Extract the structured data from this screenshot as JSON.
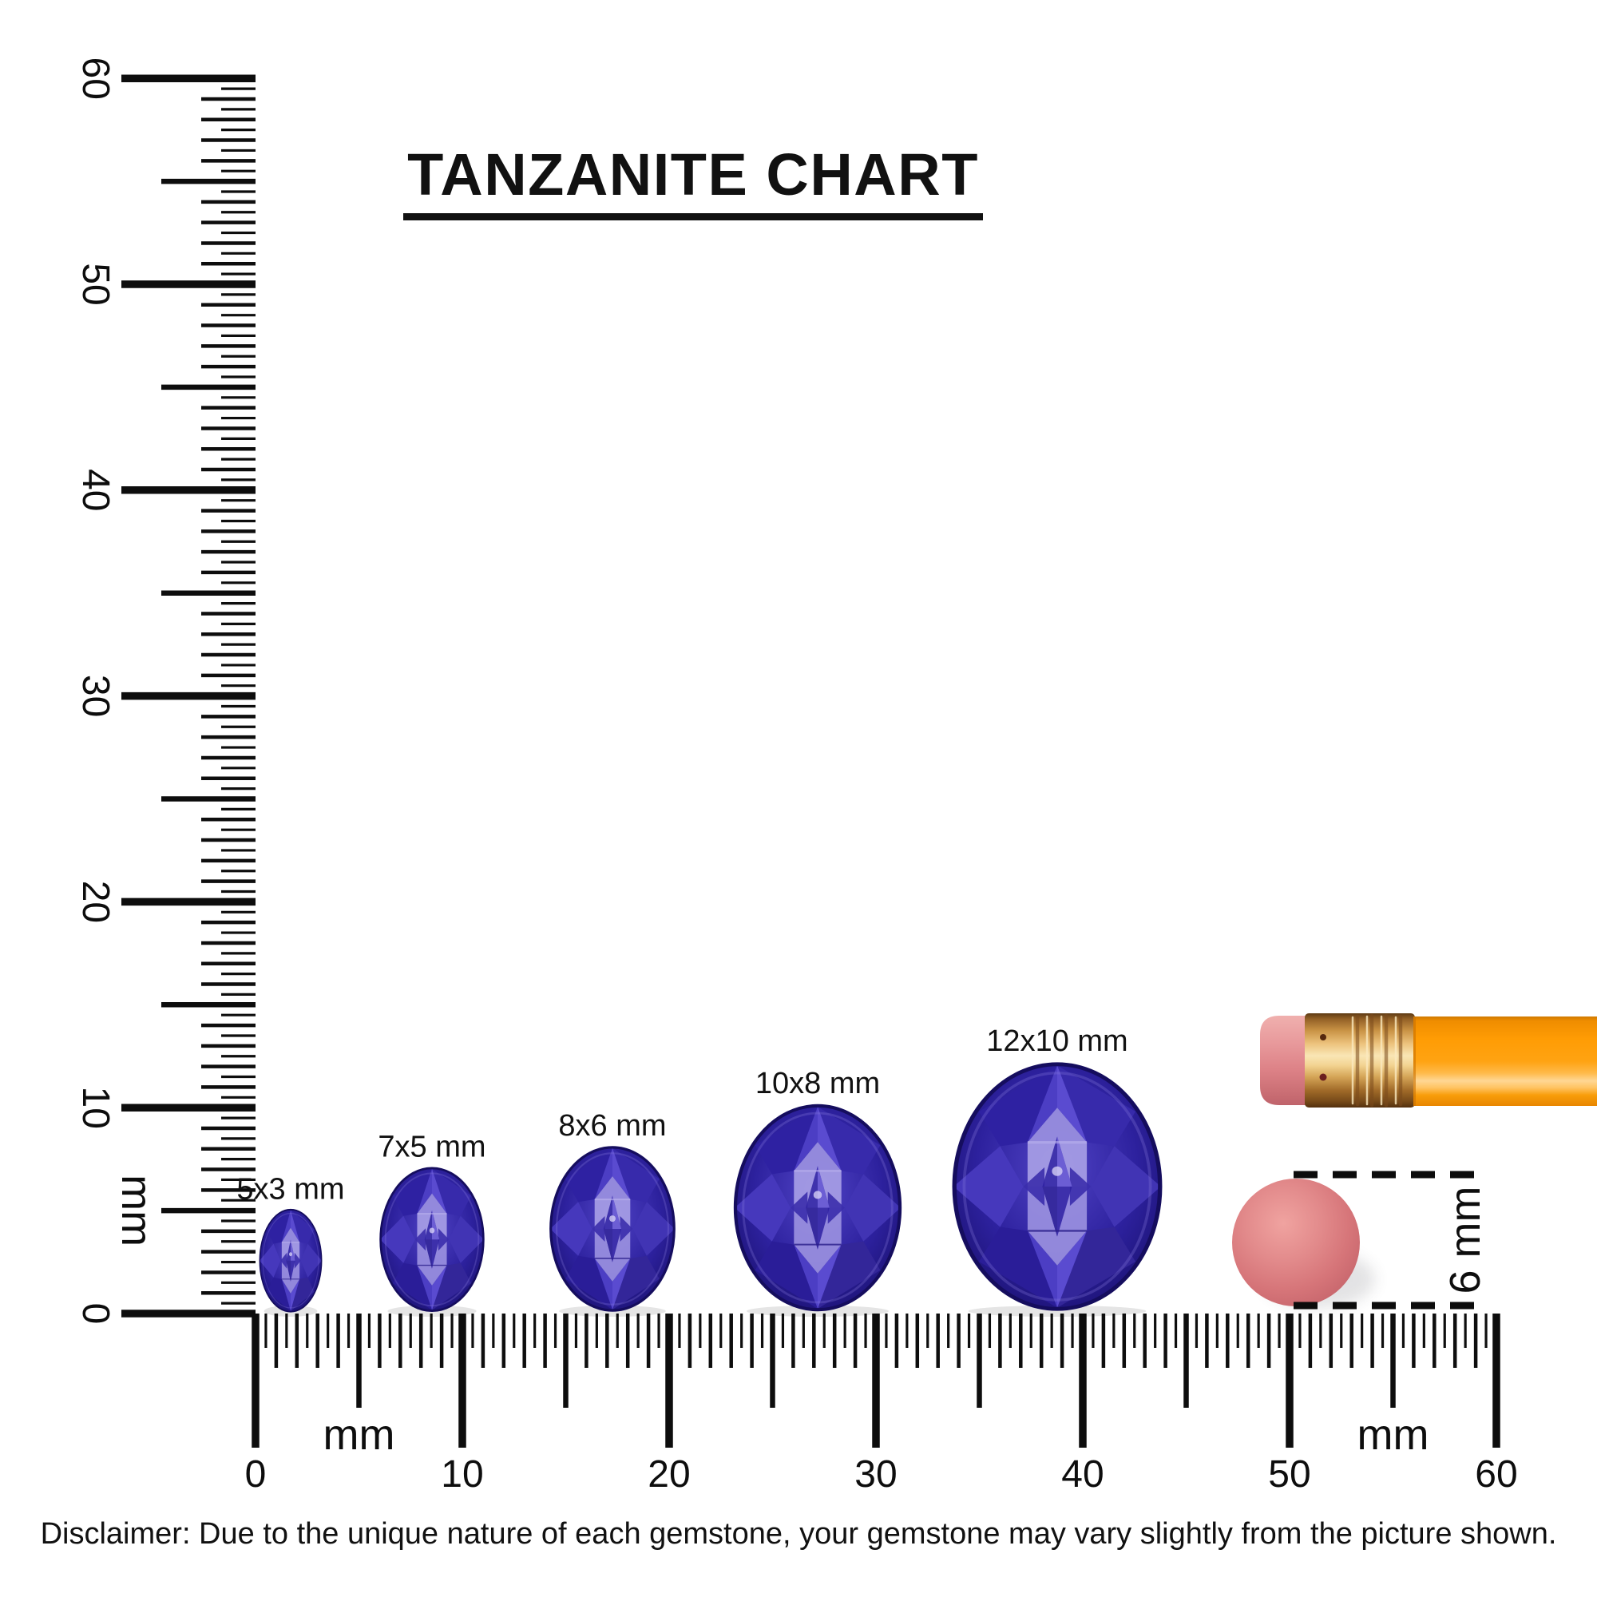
{
  "title": "TANZANITE CHART",
  "disclaimer": "Disclaimer: Due to the unique nature of each gemstone, your gemstone may vary slightly from the picture shown.",
  "chart_data": {
    "type": "size-comparison",
    "subject": "Tanzanite oval gemstones shown at real size against millimeter rulers",
    "unit": "mm",
    "gems": [
      {
        "label": "5x3 mm",
        "length_mm": 5,
        "width_mm": 3
      },
      {
        "label": "7x5 mm",
        "length_mm": 7,
        "width_mm": 5
      },
      {
        "label": "8x6 mm",
        "length_mm": 8,
        "width_mm": 6
      },
      {
        "label": "10x8 mm",
        "length_mm": 10,
        "width_mm": 8
      },
      {
        "label": "12x10 mm",
        "length_mm": 12,
        "width_mm": 10
      }
    ],
    "rulers": {
      "horizontal": {
        "min_mm": 0,
        "max_mm": 60,
        "major_tick_mm": 10,
        "mid_tick_mm": 5,
        "minor_tick_mm": 0.5,
        "major_labels": [
          "0",
          "10",
          "20",
          "30",
          "40",
          "50",
          "60"
        ],
        "unit_label": "mm",
        "unit_label_positions_mm": [
          5,
          55
        ]
      },
      "vertical": {
        "min_mm": 0,
        "max_mm": 60,
        "major_tick_mm": 10,
        "mid_tick_mm": 5,
        "minor_tick_mm": 0.5,
        "major_labels": [
          "0",
          "10",
          "20",
          "30",
          "40",
          "50",
          "60"
        ],
        "unit_label": "mm",
        "unit_label_positions_mm": [
          5
        ]
      }
    },
    "reference_objects": [
      {
        "name": "pencil",
        "description": "orange pencil with brass ferrule and pink eraser"
      },
      {
        "name": "pencil-eraser-end",
        "diameter_label": "6 mm",
        "diameter_mm": 6
      }
    ]
  },
  "colors": {
    "background": "#ffffff",
    "ink": "#0d0d0d",
    "gem_dark": "#1b1170",
    "gem_deep": "#2e21a2",
    "gem_mid": "#4638bc",
    "gem_mid2": "#5a4bd0",
    "gem_light": "#8d82dd",
    "gem_table": "#9a90e0",
    "pencil_orange": "#ff9c04",
    "pencil_orange_dark": "#cf7a02",
    "ferrule_brass": "#d29a4a",
    "ferrule_highlight": "#f9e6b5",
    "eraser_pink": "#dd8287",
    "eraser_disc": "#d67579"
  }
}
